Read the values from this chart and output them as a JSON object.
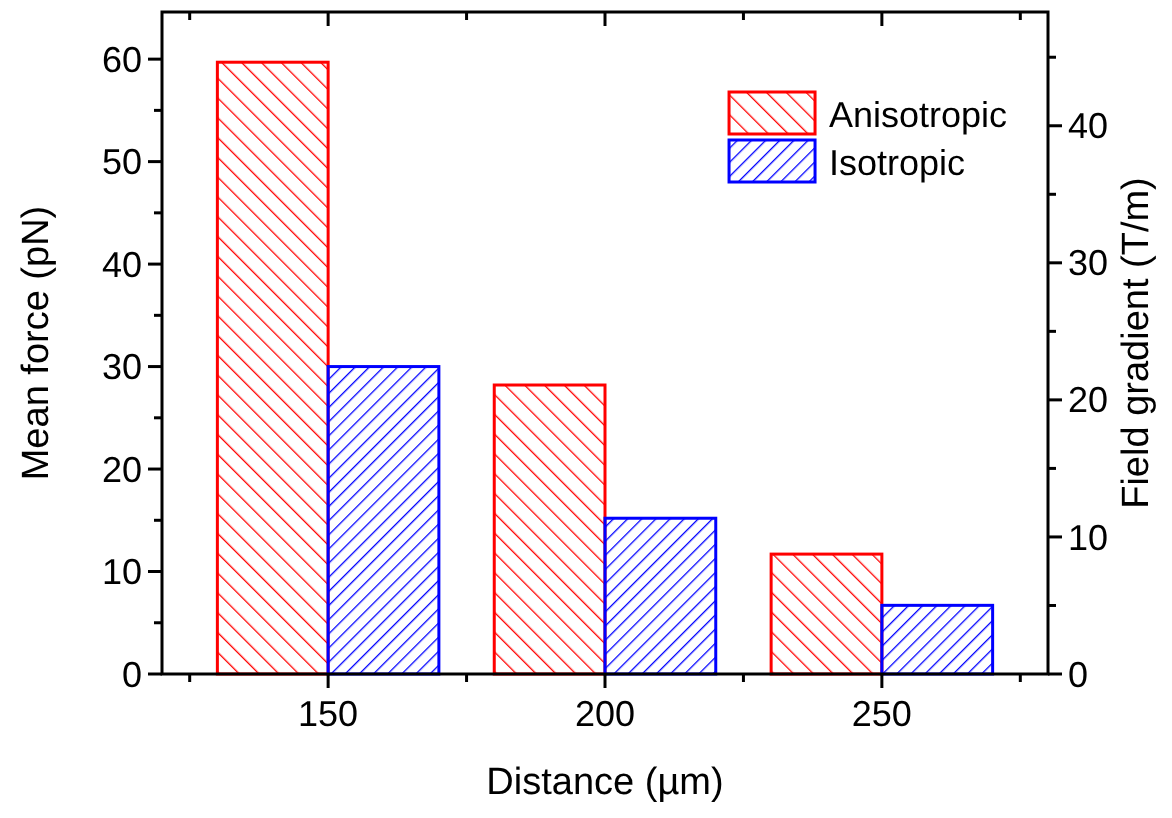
{
  "chart_data": {
    "type": "bar",
    "xlabel": "Distance (µm)",
    "ylabel": "Mean force (pN)",
    "y2label": "Field gradient (T/m)",
    "x": [
      150,
      200,
      250
    ],
    "series": [
      {
        "name": "Anisotropic",
        "color": "#ff0000",
        "values": [
          59.7,
          28.2,
          11.7
        ]
      },
      {
        "name": "Isotropic",
        "color": "#0000ff",
        "values": [
          30.0,
          15.2,
          6.7
        ]
      }
    ],
    "xlim": [
      120,
      280
    ],
    "xticks": [
      {
        "value": 125,
        "label": null
      },
      150,
      {
        "value": 175,
        "label": null
      },
      200,
      {
        "value": 225,
        "label": null
      },
      250,
      {
        "value": 275,
        "label": null
      }
    ],
    "ylim": [
      0,
      64.6
    ],
    "yticks": [
      0,
      {
        "value": 5,
        "label": null
      },
      10,
      {
        "value": 15,
        "label": null
      },
      20,
      {
        "value": 25,
        "label": null
      },
      30,
      {
        "value": 35,
        "label": null
      },
      40,
      {
        "value": 45,
        "label": null
      },
      50,
      {
        "value": 55,
        "label": null
      },
      60
    ],
    "y2lim": [
      0,
      48.3
    ],
    "y2ticks": [
      0,
      {
        "value": 5,
        "label": null
      },
      10,
      {
        "value": 15,
        "label": null
      },
      20,
      {
        "value": 25,
        "label": null
      },
      30,
      {
        "value": 35,
        "label": null
      },
      40,
      {
        "value": 45,
        "label": null
      }
    ],
    "legend": "top right",
    "grid": false
  }
}
